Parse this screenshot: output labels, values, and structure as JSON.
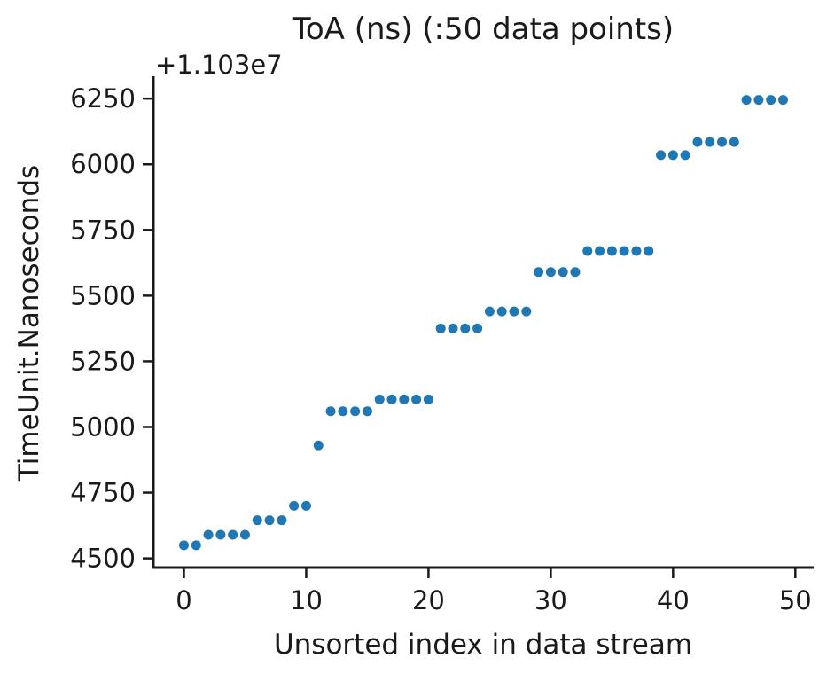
{
  "chart_data": {
    "type": "scatter",
    "title": "ToA (ns) (:50 data points)",
    "xlabel": "Unsorted index in data stream",
    "ylabel": "TimeUnit.Nanoseconds",
    "offset_label": "+1.103e7",
    "xlim": [
      -2.5,
      51.5
    ],
    "ylim": [
      4465,
      6335
    ],
    "xticks": [
      0,
      10,
      20,
      30,
      40,
      50
    ],
    "yticks": [
      4500,
      4750,
      5000,
      5250,
      5500,
      5750,
      6000,
      6250
    ],
    "grid": false,
    "marker_color": "#1f77b4",
    "x": [
      0,
      1,
      2,
      3,
      4,
      5,
      6,
      7,
      8,
      9,
      10,
      11,
      12,
      13,
      14,
      15,
      16,
      17,
      18,
      19,
      20,
      21,
      22,
      23,
      24,
      25,
      26,
      27,
      28,
      29,
      30,
      31,
      32,
      33,
      34,
      35,
      36,
      37,
      38,
      39,
      40,
      41,
      42,
      43,
      44,
      45,
      46,
      47,
      48,
      49
    ],
    "y": [
      4550,
      4550,
      4590,
      4590,
      4590,
      4590,
      4645,
      4645,
      4645,
      4700,
      4700,
      4930,
      5060,
      5060,
      5060,
      5060,
      5105,
      5105,
      5105,
      5105,
      5105,
      5375,
      5375,
      5375,
      5375,
      5440,
      5440,
      5440,
      5440,
      5590,
      5590,
      5590,
      5590,
      5670,
      5670,
      5670,
      5670,
      5670,
      5670,
      6035,
      6035,
      6035,
      6085,
      6085,
      6085,
      6085,
      6245,
      6245,
      6245,
      6245
    ]
  }
}
